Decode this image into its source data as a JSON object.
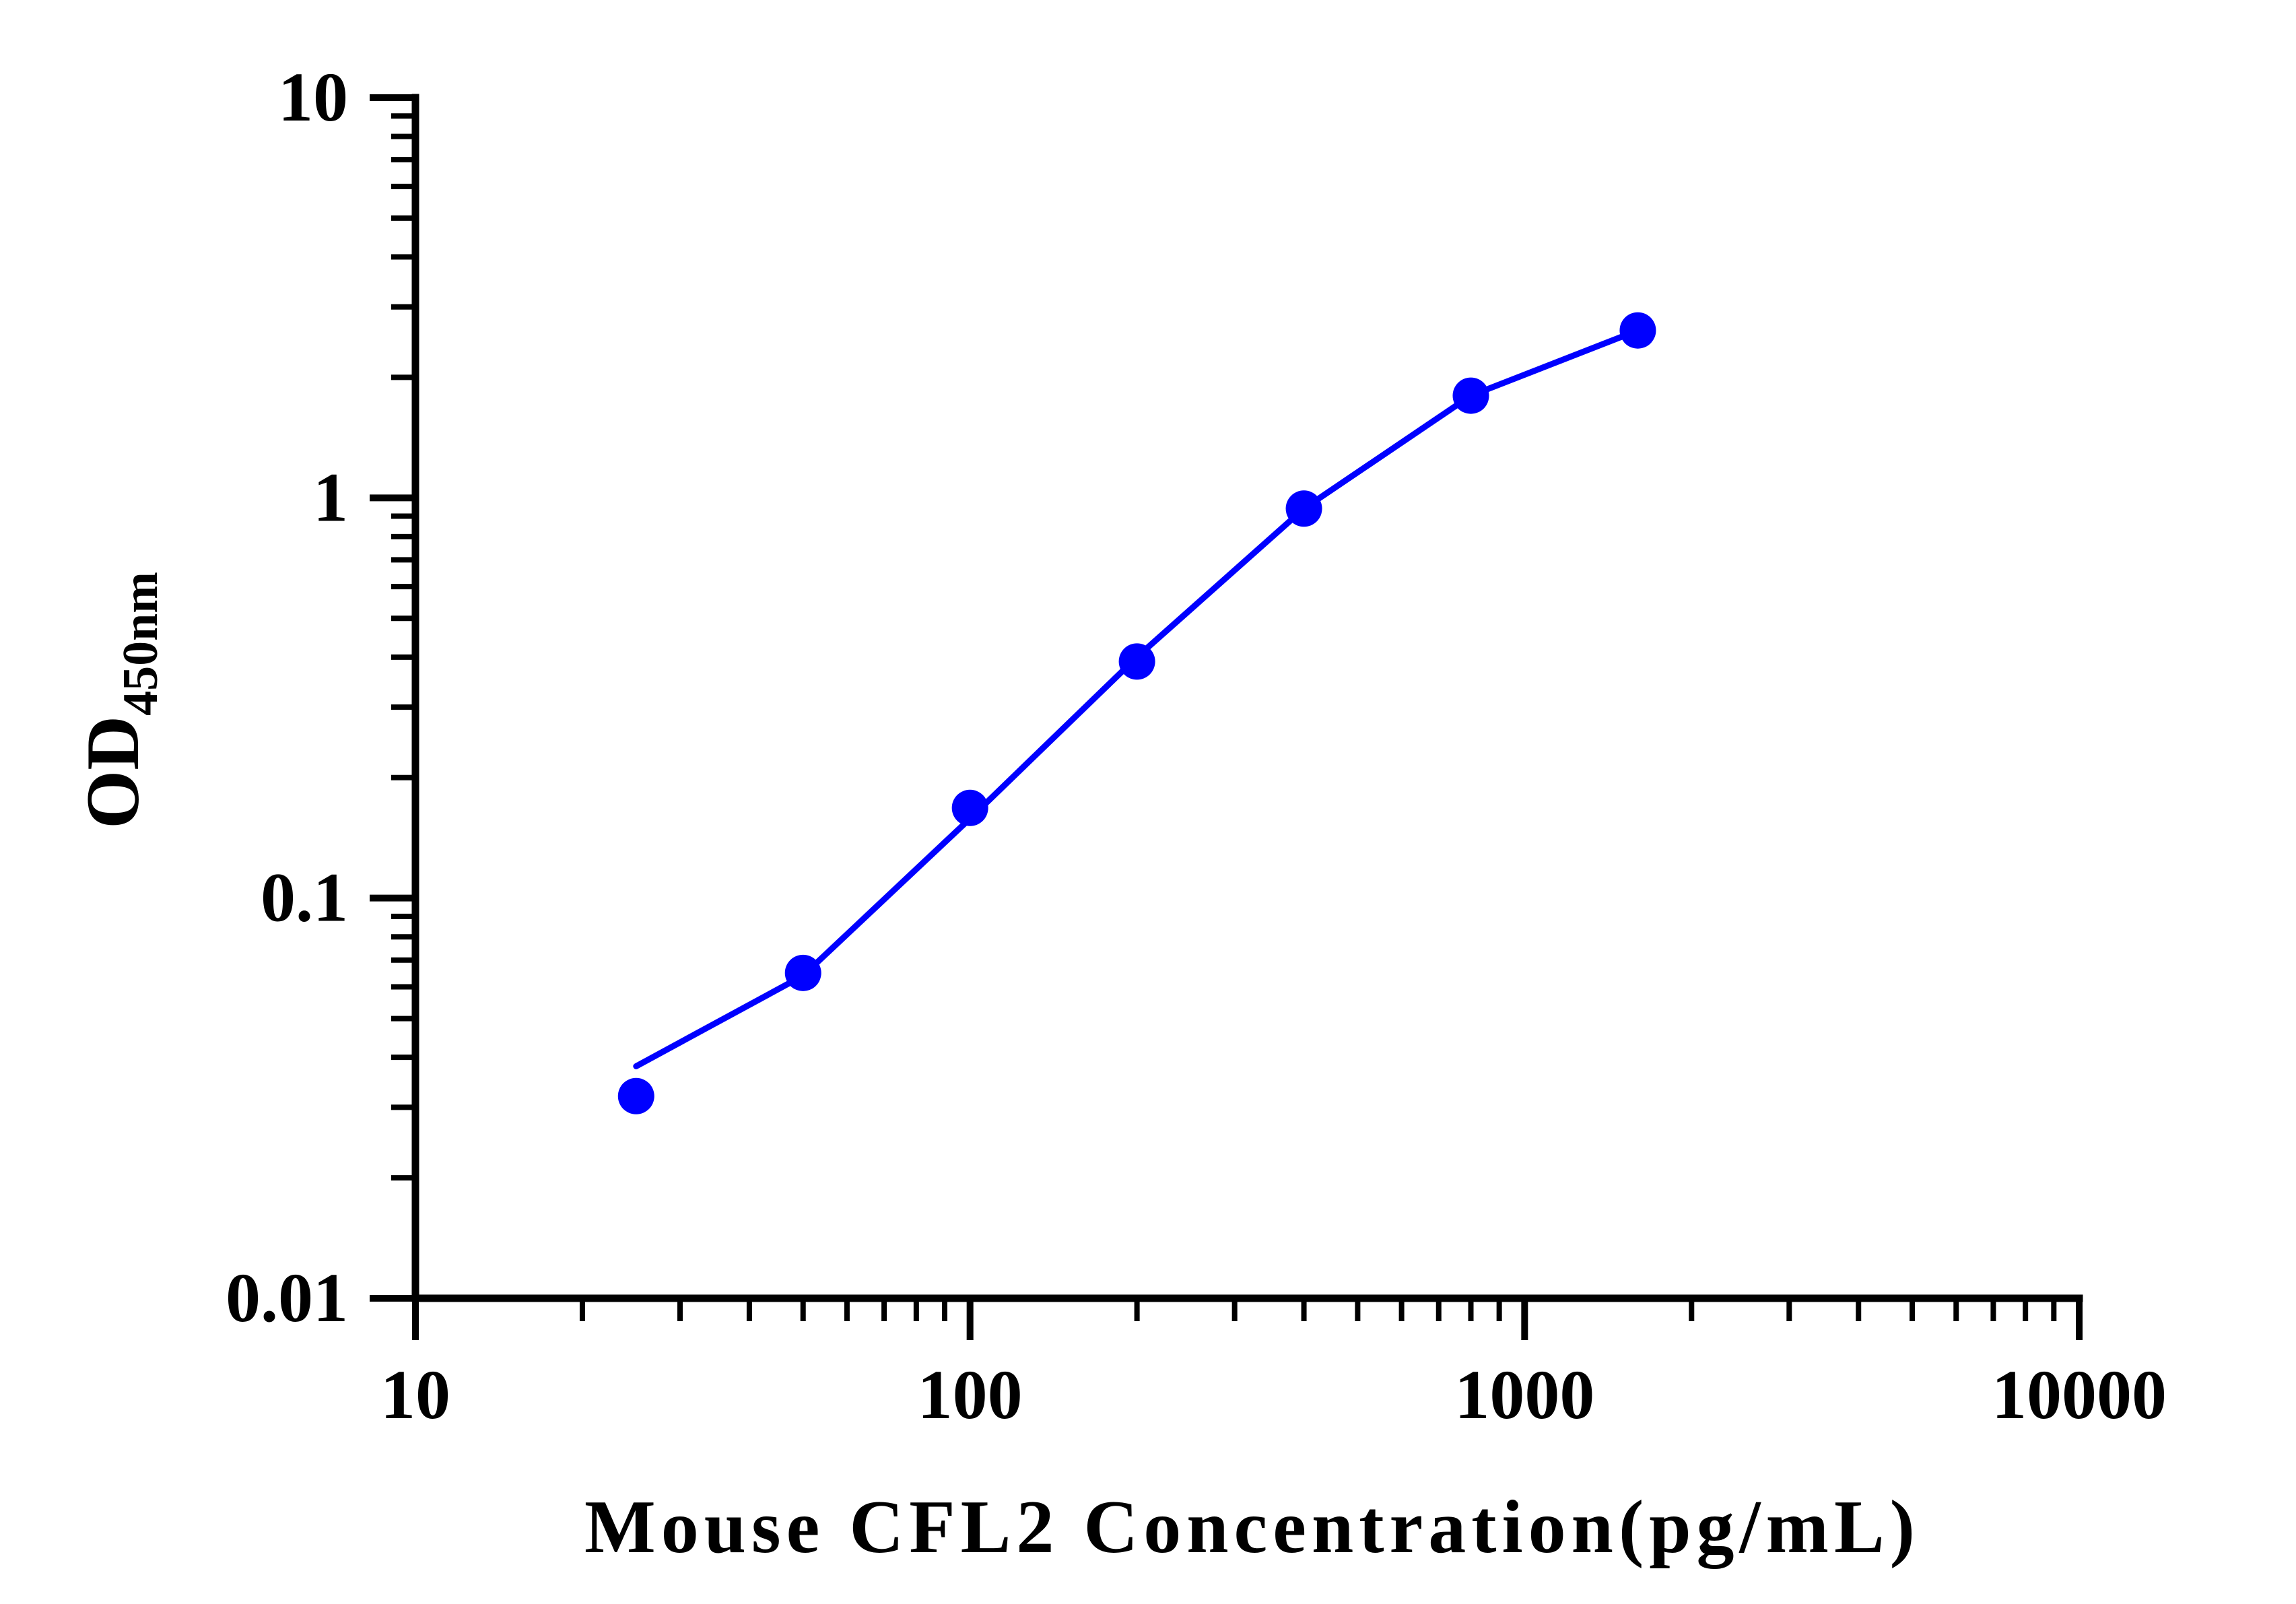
{
  "chart_data": {
    "type": "line",
    "title": "",
    "xlabel": "Mouse CFL2 Concentration(pg/mL)",
    "ylabel": "OD",
    "ylabel_subscript": "450nm",
    "x_scale": "log",
    "y_scale": "log",
    "xlim": [
      10,
      10000
    ],
    "ylim": [
      0.01,
      10
    ],
    "x_ticks": [
      10,
      100,
      1000,
      10000
    ],
    "x_tick_labels": [
      "10",
      "100",
      "1000",
      "10000"
    ],
    "y_ticks": [
      0.01,
      0.1,
      1,
      10
    ],
    "y_tick_labels": [
      "0.01",
      "0.1",
      "1",
      "10"
    ],
    "grid": false,
    "legend": "none",
    "series": [
      {
        "x": [
          25,
          50,
          100,
          200,
          400,
          800,
          1600
        ],
        "y": [
          0.032,
          0.065,
          0.168,
          0.39,
          0.94,
          1.8,
          2.62
        ],
        "color": "#0000ff",
        "marker": "circle"
      }
    ],
    "fit_curve": {
      "x": [
        25,
        50,
        100,
        200,
        400,
        800,
        1600
      ],
      "y": [
        0.038,
        0.064,
        0.158,
        0.4,
        0.94,
        1.8,
        2.62
      ],
      "color": "#0000ff"
    }
  }
}
